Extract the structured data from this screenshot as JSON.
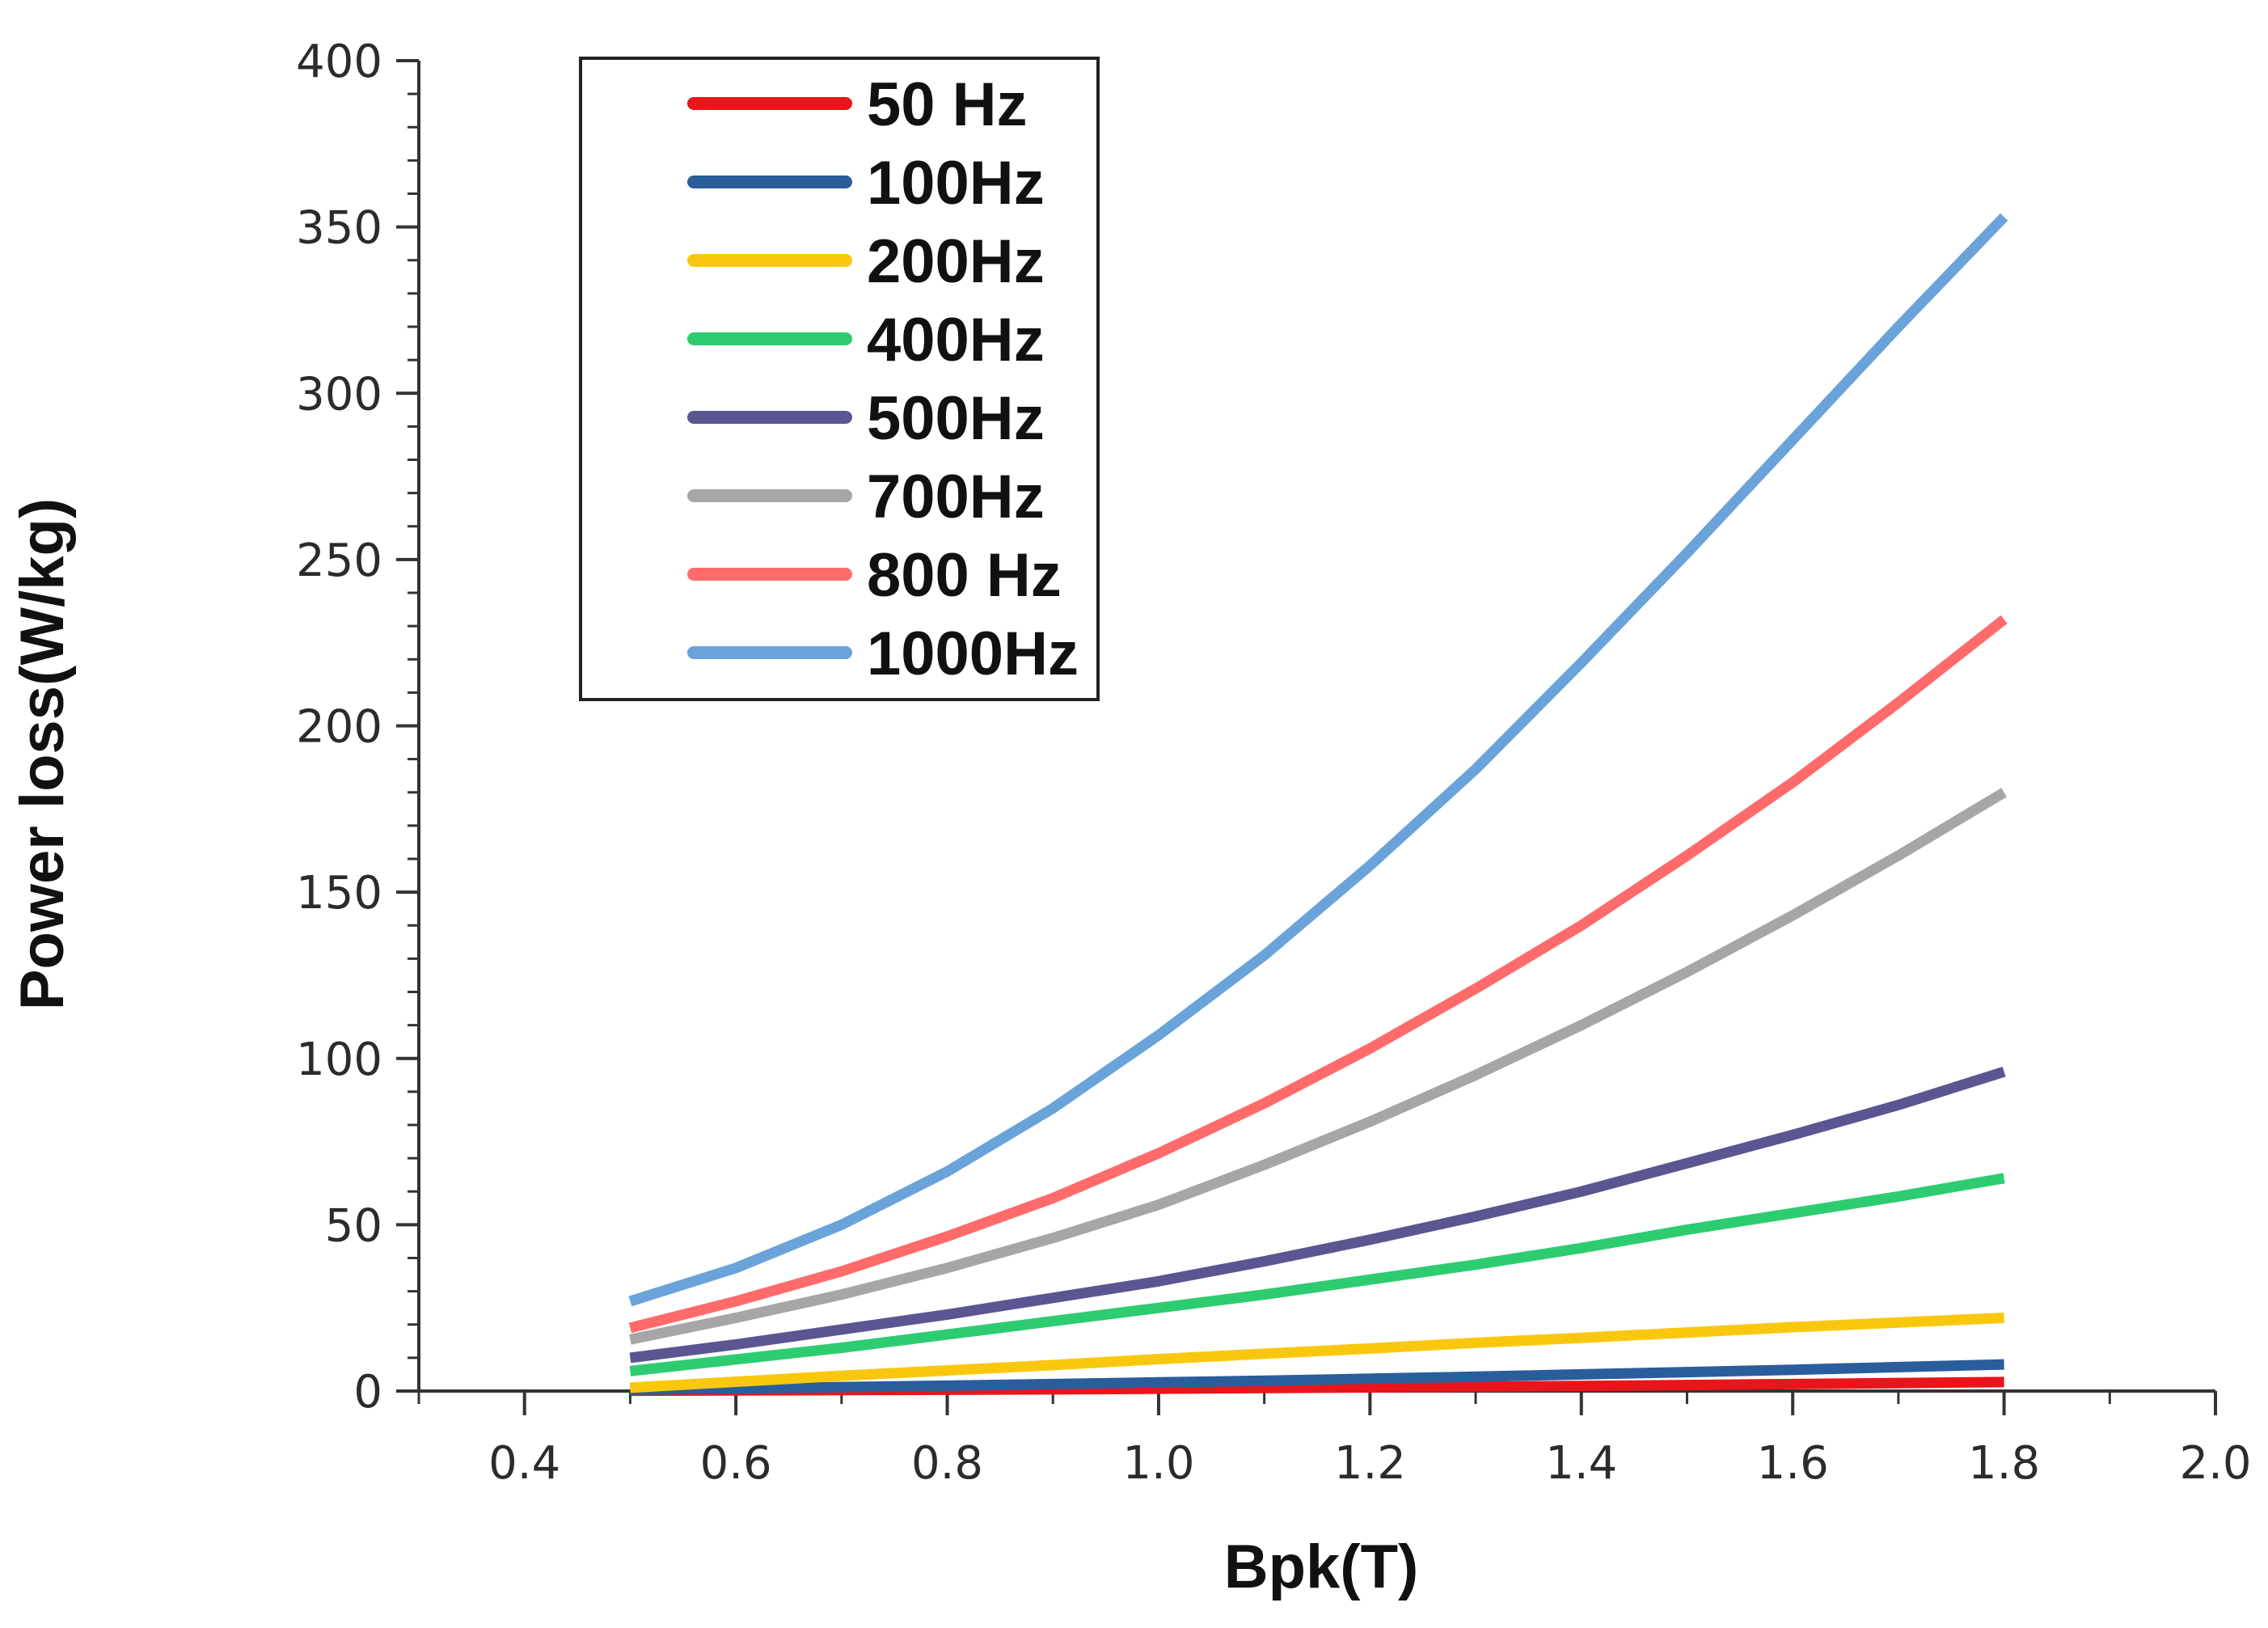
{
  "chart_data": {
    "type": "line",
    "title": "",
    "xlabel": "Bpk(T)",
    "ylabel": "Power loss(W/kg)",
    "xlim": [
      0.3,
      2.0
    ],
    "ylim": [
      0,
      400
    ],
    "xticks": [
      "0.4",
      "0.6",
      "0.8",
      "1.0",
      "1.2",
      "1.4",
      "1.6",
      "1.8",
      "2.0"
    ],
    "yticks": [
      "0",
      "50",
      "100",
      "150",
      "200",
      "250",
      "300",
      "350",
      "400"
    ],
    "x": [
      0.5,
      0.6,
      0.7,
      0.8,
      0.9,
      1.0,
      1.1,
      1.2,
      1.3,
      1.4,
      1.5,
      1.6,
      1.7,
      1.8
    ],
    "grid": false,
    "legend_position": "top-left",
    "series": [
      {
        "name": "50 Hz",
        "color": "#e8151b",
        "values": [
          0.1,
          0.2,
          0.3,
          0.4,
          0.5,
          0.7,
          0.9,
          1.1,
          1.3,
          1.5,
          1.8,
          2.1,
          2.4,
          2.7
        ]
      },
      {
        "name": "100Hz",
        "color": "#2a5d9c",
        "values": [
          0.4,
          0.8,
          1.2,
          1.6,
          2.1,
          2.6,
          3.1,
          3.7,
          4.3,
          5.0,
          5.7,
          6.4,
          7.2,
          8.0
        ]
      },
      {
        "name": "200Hz",
        "color": "#f9c80e",
        "values": [
          1.0,
          2.8,
          4.6,
          6.2,
          7.8,
          9.6,
          11.2,
          12.8,
          14.5,
          16.0,
          17.6,
          19.2,
          20.6,
          22.0
        ]
      },
      {
        "name": "400Hz",
        "color": "#2ecc71",
        "values": [
          6.0,
          9.5,
          13.0,
          17.0,
          21.0,
          25.0,
          29.0,
          33.5,
          38.0,
          43.0,
          48.5,
          53.5,
          58.5,
          64.0
        ]
      },
      {
        "name": "500Hz",
        "color": "#5b5591",
        "values": [
          10.0,
          14.0,
          18.5,
          23.0,
          28.0,
          33.0,
          39.0,
          45.5,
          52.5,
          60.0,
          68.5,
          77.0,
          86.0,
          96.0
        ]
      },
      {
        "name": "700Hz",
        "color": "#a6a6a6",
        "values": [
          15.5,
          22.0,
          29.0,
          37.0,
          46.0,
          56.0,
          68.0,
          81.0,
          95.0,
          110.0,
          126.0,
          143.0,
          161.0,
          180.0
        ]
      },
      {
        "name": "800 Hz",
        "color": "#ff6b6b",
        "values": [
          19.0,
          27.0,
          36.0,
          46.5,
          58.0,
          71.5,
          86.5,
          103.0,
          121.0,
          140.0,
          161.0,
          183.0,
          207.0,
          232.0
        ]
      },
      {
        "name": "1000Hz",
        "color": "#6aa3d9",
        "values": [
          27.0,
          37.0,
          50.0,
          66.0,
          85.0,
          107.0,
          131.0,
          158.0,
          187.0,
          219.0,
          252.0,
          286.0,
          320.0,
          353.0
        ]
      }
    ]
  }
}
